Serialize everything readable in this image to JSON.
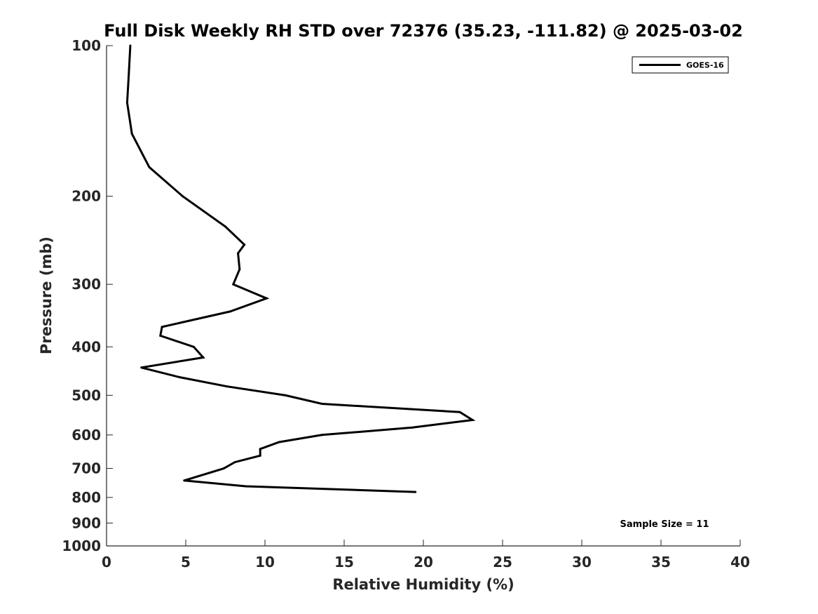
{
  "chart_data": {
    "type": "line",
    "title": "Full Disk Weekly RH STD over 72376 (35.23, -111.82) @ 2025-03-02",
    "xlabel": "Relative Humidity (%)",
    "ylabel": "Pressure (mb)",
    "xlim": [
      0,
      40
    ],
    "ylim": [
      100,
      1000
    ],
    "y_scale": "log",
    "y_reversed": true,
    "grid": false,
    "legend_position": "top-right",
    "x_ticks": [
      "0",
      "5",
      "10",
      "15",
      "20",
      "25",
      "30",
      "35",
      "40"
    ],
    "y_ticks": [
      "100",
      "200",
      "300",
      "400",
      "500",
      "600",
      "700",
      "800",
      "900",
      "1000"
    ],
    "annotation": "Sample Size = 11",
    "series": [
      {
        "name": "GOES-16",
        "color": "#000000",
        "x": [
          1.5,
          1.4,
          1.3,
          1.6,
          2.7,
          4.8,
          7.5,
          8.7,
          8.3,
          8.4,
          8.0,
          10.1,
          7.8,
          3.5,
          3.4,
          5.5,
          6.1,
          2.2,
          4.6,
          7.6,
          11.3,
          13.6,
          22.3,
          23.1,
          19.3,
          13.6,
          10.9,
          9.7,
          9.7,
          8.1,
          7.4,
          4.9,
          8.8,
          19.5
        ],
        "y": [
          100,
          115,
          130,
          150,
          175,
          200,
          230,
          250,
          260,
          280,
          300,
          320,
          340,
          365,
          380,
          400,
          420,
          440,
          460,
          480,
          500,
          520,
          540,
          560,
          580,
          600,
          620,
          640,
          660,
          680,
          700,
          740,
          760,
          780
        ]
      }
    ]
  }
}
